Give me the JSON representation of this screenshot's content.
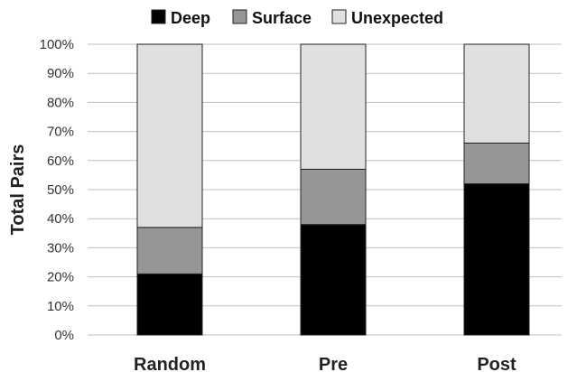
{
  "chart_data": {
    "type": "bar",
    "stacked": true,
    "categories": [
      "Random",
      "Pre",
      "Post"
    ],
    "series": [
      {
        "name": "Deep",
        "color": "#000000",
        "values": [
          21,
          38,
          52
        ]
      },
      {
        "name": "Surface",
        "color": "#969696",
        "values": [
          16,
          19,
          14
        ]
      },
      {
        "name": "Unexpected",
        "color": "#e0e0e0",
        "values": [
          63,
          43,
          34
        ]
      }
    ],
    "ylabel": "Total Pairs",
    "ylim": [
      0,
      100
    ],
    "yticks": [
      0,
      10,
      20,
      30,
      40,
      50,
      60,
      70,
      80,
      90,
      100
    ],
    "tick_suffix": "%",
    "grid": true,
    "legend_position": "top"
  }
}
